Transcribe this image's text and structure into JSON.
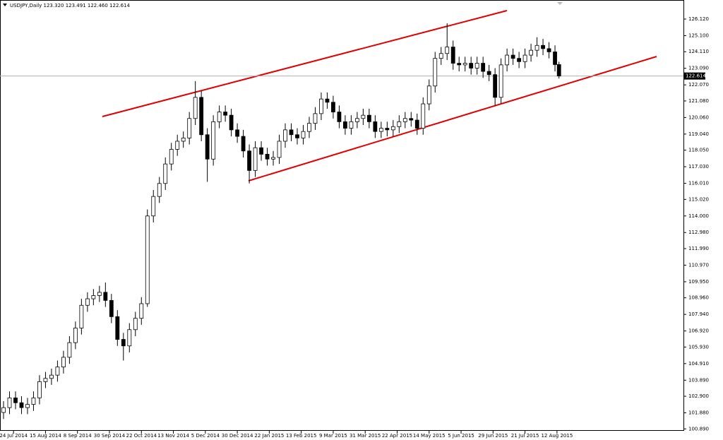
{
  "chart_data": {
    "type": "candlestick",
    "title": "USDJPY,Daily  123.320 123.491 122.460 122.614",
    "x": [
      0,
      3,
      6,
      9,
      12,
      15,
      18,
      21,
      24,
      27,
      30,
      33,
      36,
      39,
      42,
      45,
      48,
      51,
      54,
      57,
      60,
      63,
      66,
      69,
      72,
      75,
      78,
      81,
      84,
      87,
      90,
      93,
      96,
      99,
      102,
      105,
      108,
      111,
      114,
      117,
      120,
      123,
      126,
      129,
      132,
      135,
      138,
      141,
      144,
      147,
      150,
      153,
      156,
      159,
      162,
      165,
      168,
      171,
      174,
      177,
      180,
      183,
      186,
      189,
      192,
      195,
      198,
      201,
      204,
      207,
      210,
      213,
      216,
      219,
      222,
      225,
      228,
      231,
      234,
      237,
      240,
      243,
      246,
      249,
      252,
      255,
      258,
      261,
      264,
      267,
      270,
      273,
      276,
      278
    ],
    "open": [
      101.9,
      102.2,
      102.8,
      102.5,
      102.2,
      102.4,
      102.8,
      103.8,
      104.0,
      104.2,
      104.7,
      105.3,
      106.2,
      107.1,
      108.5,
      108.9,
      109.1,
      109.3,
      108.8,
      107.8,
      106.4,
      106.0,
      107.0,
      107.7,
      108.6,
      114.0,
      115.2,
      116.0,
      117.2,
      118.1,
      118.6,
      118.8,
      120.0,
      121.3,
      119.0,
      117.5,
      119.8,
      120.4,
      120.2,
      119.3,
      118.9,
      118.0,
      116.8,
      118.2,
      117.8,
      117.5,
      117.6,
      118.6,
      119.3,
      119.0,
      118.8,
      119.2,
      119.7,
      120.3,
      121.2,
      121.0,
      120.4,
      119.8,
      119.4,
      119.8,
      120.0,
      120.2,
      119.8,
      119.2,
      119.4,
      119.3,
      119.5,
      119.8,
      120.0,
      119.9,
      119.4,
      120.9,
      122.0,
      123.7,
      124.0,
      124.4,
      123.4,
      123.3,
      123.4,
      123.1,
      123.4,
      122.9,
      122.7,
      121.3,
      123.3,
      123.9,
      123.7,
      123.5,
      123.9,
      124.2,
      124.5,
      124.3,
      124.1,
      123.32
    ],
    "high": [
      102.6,
      103.2,
      103.2,
      102.9,
      102.8,
      103.2,
      104.2,
      104.4,
      104.6,
      105.1,
      105.7,
      106.6,
      107.5,
      108.9,
      109.3,
      109.5,
      109.7,
      109.9,
      109.2,
      108.2,
      106.8,
      107.4,
      108.1,
      109.0,
      114.4,
      115.6,
      116.4,
      117.6,
      118.5,
      119.0,
      119.2,
      120.4,
      122.3,
      121.7,
      119.4,
      120.2,
      120.8,
      120.8,
      120.6,
      119.7,
      119.3,
      118.4,
      118.6,
      118.6,
      118.2,
      118.0,
      119.0,
      119.7,
      119.7,
      119.4,
      119.6,
      120.1,
      120.7,
      121.6,
      121.6,
      121.4,
      120.8,
      120.2,
      120.2,
      120.4,
      120.6,
      120.6,
      120.2,
      119.8,
      119.8,
      119.9,
      120.2,
      120.4,
      120.4,
      120.3,
      121.3,
      122.4,
      124.1,
      124.4,
      125.86,
      124.8,
      123.8,
      123.8,
      123.8,
      123.8,
      123.8,
      123.3,
      123.1,
      123.7,
      124.3,
      124.3,
      124.1,
      124.3,
      124.6,
      125.0,
      124.9,
      124.7,
      124.5,
      123.491
    ],
    "low": [
      101.5,
      101.8,
      102.1,
      101.8,
      101.8,
      102.0,
      102.4,
      103.4,
      103.6,
      103.8,
      104.3,
      104.9,
      105.8,
      106.7,
      108.1,
      108.5,
      108.7,
      108.4,
      107.4,
      106.0,
      105.1,
      105.6,
      106.6,
      107.3,
      108.4,
      113.6,
      114.8,
      115.6,
      116.8,
      117.7,
      118.2,
      118.4,
      119.6,
      118.6,
      116.1,
      117.1,
      119.4,
      119.8,
      118.9,
      118.5,
      117.6,
      116.0,
      116.4,
      117.4,
      117.1,
      117.1,
      117.2,
      118.2,
      118.6,
      118.4,
      118.4,
      118.8,
      119.3,
      119.9,
      120.6,
      120.0,
      119.4,
      119.0,
      119.0,
      119.4,
      119.6,
      119.4,
      118.8,
      118.8,
      118.9,
      118.9,
      119.1,
      119.4,
      119.5,
      119.0,
      119.0,
      120.5,
      121.6,
      123.3,
      123.6,
      123.0,
      122.9,
      122.9,
      122.7,
      122.7,
      122.5,
      122.3,
      120.8,
      120.9,
      122.9,
      123.3,
      123.1,
      123.1,
      123.5,
      123.8,
      123.9,
      123.7,
      122.9,
      122.46
    ],
    "close": [
      102.2,
      102.8,
      102.5,
      102.2,
      102.4,
      102.8,
      103.8,
      104.0,
      104.2,
      104.7,
      105.3,
      106.2,
      107.1,
      108.5,
      108.9,
      109.1,
      109.3,
      108.8,
      107.8,
      106.4,
      106.0,
      107.0,
      107.7,
      108.6,
      114.0,
      115.2,
      116.0,
      117.2,
      118.1,
      118.6,
      118.8,
      120.0,
      121.3,
      119.0,
      117.5,
      119.8,
      120.4,
      120.2,
      119.3,
      118.9,
      118.0,
      116.8,
      118.2,
      117.8,
      117.5,
      117.6,
      118.6,
      119.3,
      119.0,
      118.8,
      119.2,
      119.7,
      120.3,
      121.2,
      121.0,
      120.4,
      119.8,
      119.4,
      119.8,
      120.0,
      120.2,
      119.8,
      119.2,
      119.4,
      119.3,
      119.5,
      119.8,
      120.0,
      119.9,
      119.4,
      120.9,
      122.0,
      123.7,
      124.0,
      124.4,
      123.4,
      123.3,
      123.4,
      123.1,
      123.4,
      122.9,
      122.7,
      121.3,
      123.3,
      123.9,
      123.7,
      123.5,
      123.9,
      124.2,
      124.5,
      124.3,
      124.1,
      123.32,
      122.614
    ],
    "xlim": [
      -1.77,
      340.3
    ],
    "xticks": [
      {
        "value": 5,
        "label": "24 Jul 2014"
      },
      {
        "value": 21,
        "label": "15 Aug 2014"
      },
      {
        "value": 37,
        "label": "8 Sep 2014"
      },
      {
        "value": 53,
        "label": "30 Sep 2014"
      },
      {
        "value": 69,
        "label": "22 Oct 2014"
      },
      {
        "value": 85,
        "label": "13 Nov 2014"
      },
      {
        "value": 101,
        "label": "5 Dec 2014"
      },
      {
        "value": 117,
        "label": "30 Dec 2014"
      },
      {
        "value": 133,
        "label": "22 Jan 2015"
      },
      {
        "value": 149,
        "label": "13 Feb 2015"
      },
      {
        "value": 165,
        "label": "9 Mar 2015"
      },
      {
        "value": 181,
        "label": "31 Mar 2015"
      },
      {
        "value": 197,
        "label": "22 Apr 2015"
      },
      {
        "value": 213,
        "label": "14 May 2015"
      },
      {
        "value": 229,
        "label": "5 Jun 2015"
      },
      {
        "value": 245,
        "label": "29 Jun 2015"
      },
      {
        "value": 261,
        "label": "21 Jul 2015"
      },
      {
        "value": 277,
        "label": "12 Aug 2015"
      }
    ],
    "ylim": [
      100.772,
      127.294
    ],
    "yticks": [
      {
        "value": 126.12,
        "label": "126.120"
      },
      {
        "value": 125.1,
        "label": "125.100"
      },
      {
        "value": 124.11,
        "label": "124.110"
      },
      {
        "value": 123.09,
        "label": "123.090"
      },
      {
        "value": 122.07,
        "label": "122.070"
      },
      {
        "value": 121.08,
        "label": "121.080"
      },
      {
        "value": 120.06,
        "label": "120.060"
      },
      {
        "value": 119.04,
        "label": "119.040"
      },
      {
        "value": 118.05,
        "label": "118.050"
      },
      {
        "value": 117.03,
        "label": "117.030"
      },
      {
        "value": 116.01,
        "label": "116.010"
      },
      {
        "value": 115.02,
        "label": "115.020"
      },
      {
        "value": 114.0,
        "label": "114.000"
      },
      {
        "value": 112.98,
        "label": "112.980"
      },
      {
        "value": 111.99,
        "label": "111.990"
      },
      {
        "value": 110.97,
        "label": "110.970"
      },
      {
        "value": 109.95,
        "label": "109.950"
      },
      {
        "value": 108.96,
        "label": "108.960"
      },
      {
        "value": 107.94,
        "label": "107.940"
      },
      {
        "value": 106.92,
        "label": "106.920"
      },
      {
        "value": 105.93,
        "label": "105.930"
      },
      {
        "value": 104.91,
        "label": "104.910"
      },
      {
        "value": 103.89,
        "label": "103.890"
      },
      {
        "value": 102.9,
        "label": "102.900"
      },
      {
        "value": 101.88,
        "label": "101.880"
      },
      {
        "value": 100.89,
        "label": "100.890"
      }
    ],
    "up_color": "#ffffff",
    "down_color": "#000000",
    "line_color": "#000000"
  }
}
